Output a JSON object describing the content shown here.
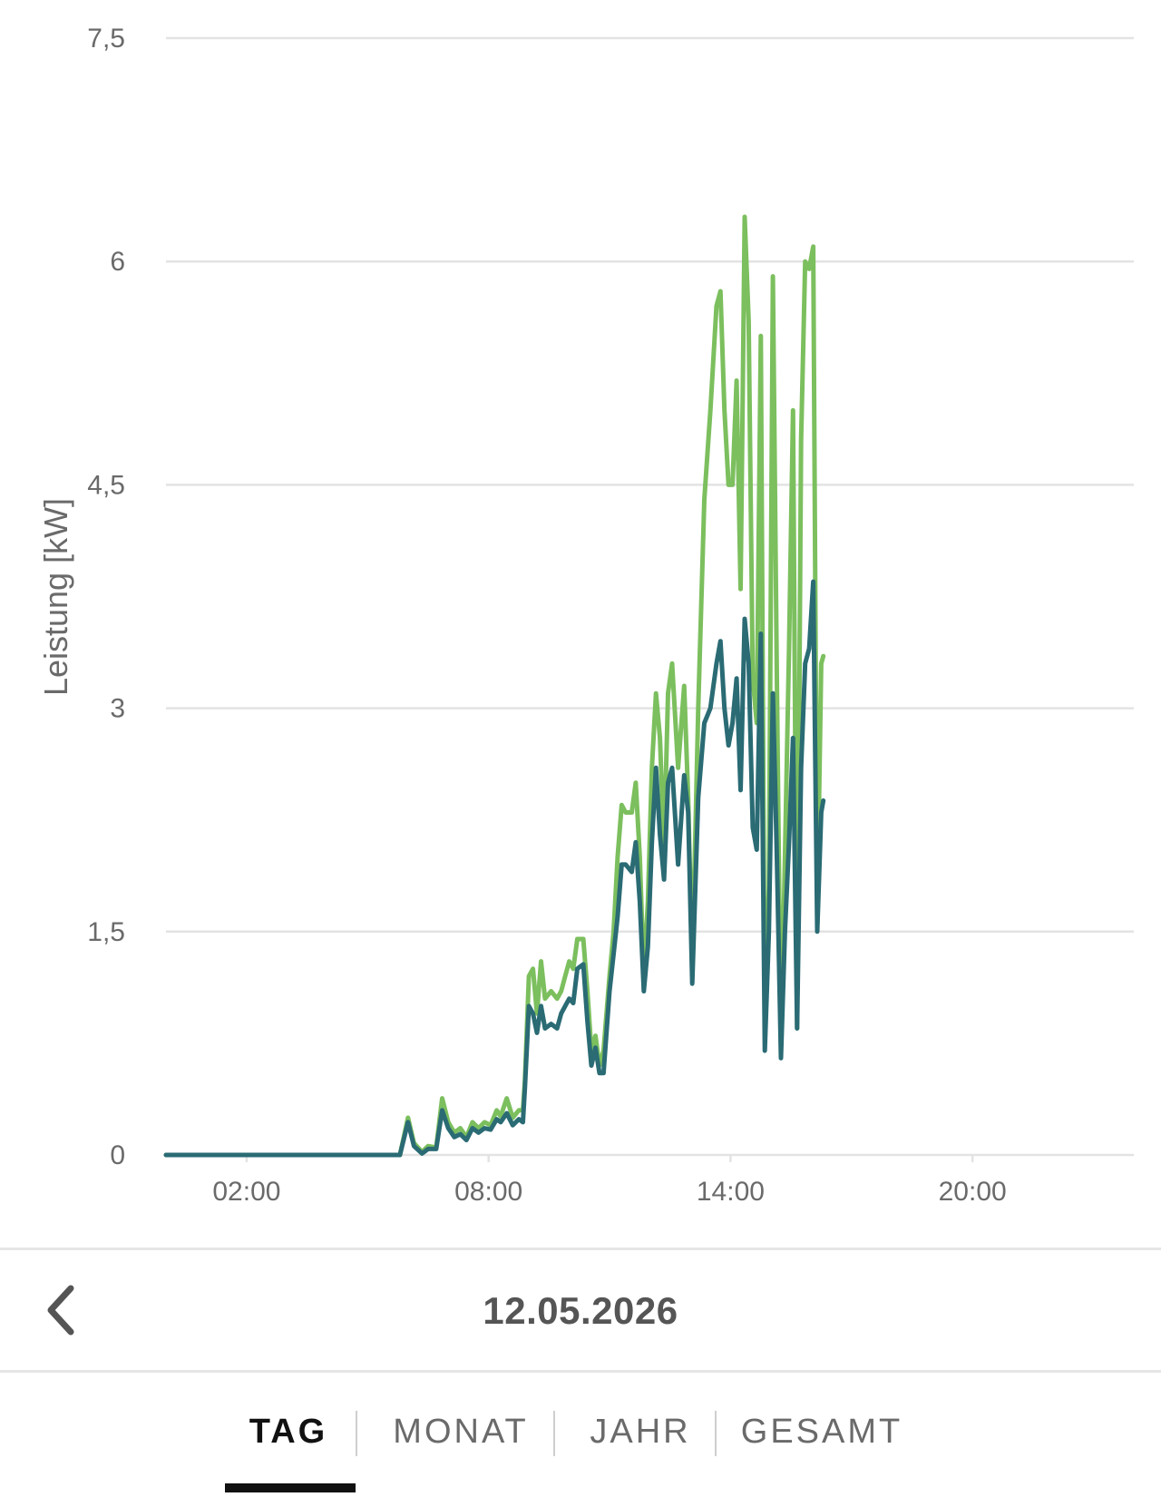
{
  "colors": {
    "series_green": "#7cbf5e",
    "series_teal": "#2a6b74",
    "grid": "#e3e3e3",
    "text": "#6a6a6a"
  },
  "chart_data": {
    "type": "line",
    "title": "",
    "xlabel": "",
    "ylabel": "Leistung [kW]",
    "xlim": [
      0,
      24
    ],
    "ylim": [
      0,
      7.5
    ],
    "y_ticks": [
      0,
      1.5,
      3,
      4.5,
      6,
      7.5
    ],
    "y_tick_labels": [
      "0",
      "1,5",
      "3",
      "4,5",
      "6",
      "7,5"
    ],
    "x_ticks": [
      2,
      8,
      14,
      20
    ],
    "x_tick_labels": [
      "02:00",
      "08:00",
      "14:00",
      "20:00"
    ],
    "grid": true,
    "legend": "none",
    "series": [
      {
        "color": "#7cbf5e",
        "points": [
          [
            0,
            0
          ],
          [
            5.8,
            0
          ],
          [
            6.0,
            0.25
          ],
          [
            6.15,
            0.08
          ],
          [
            6.35,
            0.02
          ],
          [
            6.5,
            0.06
          ],
          [
            6.7,
            0.05
          ],
          [
            6.85,
            0.38
          ],
          [
            7.0,
            0.22
          ],
          [
            7.15,
            0.15
          ],
          [
            7.3,
            0.18
          ],
          [
            7.45,
            0.12
          ],
          [
            7.6,
            0.22
          ],
          [
            7.75,
            0.18
          ],
          [
            7.9,
            0.22
          ],
          [
            8.05,
            0.2
          ],
          [
            8.2,
            0.3
          ],
          [
            8.3,
            0.26
          ],
          [
            8.45,
            0.38
          ],
          [
            8.6,
            0.25
          ],
          [
            8.75,
            0.3
          ],
          [
            8.85,
            0.3
          ],
          [
            8.9,
            0.5
          ],
          [
            9.0,
            1.2
          ],
          [
            9.1,
            1.25
          ],
          [
            9.2,
            0.95
          ],
          [
            9.3,
            1.3
          ],
          [
            9.4,
            1.05
          ],
          [
            9.55,
            1.1
          ],
          [
            9.7,
            1.05
          ],
          [
            9.8,
            1.1
          ],
          [
            9.9,
            1.2
          ],
          [
            10.0,
            1.3
          ],
          [
            10.1,
            1.25
          ],
          [
            10.2,
            1.45
          ],
          [
            10.35,
            1.45
          ],
          [
            10.45,
            1.1
          ],
          [
            10.55,
            0.7
          ],
          [
            10.65,
            0.8
          ],
          [
            10.75,
            0.6
          ],
          [
            10.85,
            0.7
          ],
          [
            11.0,
            1.2
          ],
          [
            11.1,
            1.5
          ],
          [
            11.2,
            2.0
          ],
          [
            11.3,
            2.35
          ],
          [
            11.4,
            2.3
          ],
          [
            11.55,
            2.3
          ],
          [
            11.65,
            2.5
          ],
          [
            11.75,
            2.0
          ],
          [
            11.85,
            1.2
          ],
          [
            11.95,
            1.7
          ],
          [
            12.05,
            2.6
          ],
          [
            12.15,
            3.1
          ],
          [
            12.25,
            2.8
          ],
          [
            12.35,
            2.05
          ],
          [
            12.45,
            3.1
          ],
          [
            12.55,
            3.3
          ],
          [
            12.7,
            2.6
          ],
          [
            12.85,
            3.15
          ],
          [
            12.95,
            2.4
          ],
          [
            13.05,
            1.25
          ],
          [
            13.2,
            3.0
          ],
          [
            13.35,
            4.4
          ],
          [
            13.5,
            5.0
          ],
          [
            13.65,
            5.7
          ],
          [
            13.75,
            5.8
          ],
          [
            13.85,
            5.0
          ],
          [
            13.95,
            4.5
          ],
          [
            14.05,
            4.5
          ],
          [
            14.15,
            5.2
          ],
          [
            14.25,
            3.8
          ],
          [
            14.35,
            6.3
          ],
          [
            14.45,
            5.6
          ],
          [
            14.55,
            3.2
          ],
          [
            14.65,
            2.9
          ],
          [
            14.75,
            5.5
          ],
          [
            14.85,
            0.8
          ],
          [
            14.95,
            1.8
          ],
          [
            15.05,
            5.9
          ],
          [
            15.15,
            3.2
          ],
          [
            15.25,
            0.7
          ],
          [
            15.35,
            2.0
          ],
          [
            15.45,
            3.4
          ],
          [
            15.55,
            5.0
          ],
          [
            15.65,
            0.85
          ],
          [
            15.75,
            4.8
          ],
          [
            15.85,
            6.0
          ],
          [
            15.95,
            5.95
          ],
          [
            16.05,
            6.1
          ],
          [
            16.15,
            1.6
          ],
          [
            16.25,
            3.3
          ],
          [
            16.3,
            3.35
          ]
        ]
      },
      {
        "color": "#2a6b74",
        "points": [
          [
            0,
            0
          ],
          [
            5.8,
            0
          ],
          [
            6.0,
            0.22
          ],
          [
            6.15,
            0.06
          ],
          [
            6.35,
            0.01
          ],
          [
            6.5,
            0.04
          ],
          [
            6.7,
            0.04
          ],
          [
            6.85,
            0.3
          ],
          [
            7.0,
            0.18
          ],
          [
            7.15,
            0.12
          ],
          [
            7.3,
            0.14
          ],
          [
            7.45,
            0.1
          ],
          [
            7.6,
            0.18
          ],
          [
            7.75,
            0.15
          ],
          [
            7.9,
            0.18
          ],
          [
            8.05,
            0.17
          ],
          [
            8.2,
            0.24
          ],
          [
            8.3,
            0.22
          ],
          [
            8.45,
            0.28
          ],
          [
            8.6,
            0.2
          ],
          [
            8.75,
            0.24
          ],
          [
            8.85,
            0.22
          ],
          [
            8.9,
            0.45
          ],
          [
            9.0,
            1.0
          ],
          [
            9.1,
            0.95
          ],
          [
            9.2,
            0.82
          ],
          [
            9.3,
            1.0
          ],
          [
            9.4,
            0.85
          ],
          [
            9.55,
            0.88
          ],
          [
            9.7,
            0.85
          ],
          [
            9.8,
            0.95
          ],
          [
            9.9,
            1.0
          ],
          [
            10.0,
            1.05
          ],
          [
            10.1,
            1.02
          ],
          [
            10.2,
            1.25
          ],
          [
            10.35,
            1.28
          ],
          [
            10.45,
            0.9
          ],
          [
            10.55,
            0.6
          ],
          [
            10.65,
            0.72
          ],
          [
            10.75,
            0.55
          ],
          [
            10.85,
            0.55
          ],
          [
            11.0,
            1.1
          ],
          [
            11.1,
            1.35
          ],
          [
            11.2,
            1.6
          ],
          [
            11.3,
            1.95
          ],
          [
            11.4,
            1.95
          ],
          [
            11.55,
            1.9
          ],
          [
            11.65,
            2.1
          ],
          [
            11.75,
            1.7
          ],
          [
            11.85,
            1.1
          ],
          [
            11.95,
            1.4
          ],
          [
            12.05,
            2.1
          ],
          [
            12.15,
            2.6
          ],
          [
            12.25,
            2.15
          ],
          [
            12.35,
            1.85
          ],
          [
            12.45,
            2.5
          ],
          [
            12.55,
            2.6
          ],
          [
            12.7,
            1.95
          ],
          [
            12.85,
            2.55
          ],
          [
            12.95,
            2.3
          ],
          [
            13.05,
            1.15
          ],
          [
            13.2,
            2.4
          ],
          [
            13.35,
            2.9
          ],
          [
            13.5,
            3.0
          ],
          [
            13.65,
            3.3
          ],
          [
            13.75,
            3.45
          ],
          [
            13.85,
            3.0
          ],
          [
            13.95,
            2.75
          ],
          [
            14.05,
            2.9
          ],
          [
            14.15,
            3.2
          ],
          [
            14.25,
            2.45
          ],
          [
            14.35,
            3.6
          ],
          [
            14.45,
            3.3
          ],
          [
            14.55,
            2.2
          ],
          [
            14.65,
            2.05
          ],
          [
            14.75,
            3.5
          ],
          [
            14.85,
            0.7
          ],
          [
            14.95,
            1.5
          ],
          [
            15.05,
            3.1
          ],
          [
            15.15,
            2.0
          ],
          [
            15.25,
            0.65
          ],
          [
            15.35,
            1.5
          ],
          [
            15.45,
            2.1
          ],
          [
            15.55,
            2.8
          ],
          [
            15.65,
            0.85
          ],
          [
            15.75,
            2.6
          ],
          [
            15.85,
            3.3
          ],
          [
            15.95,
            3.4
          ],
          [
            16.05,
            3.85
          ],
          [
            16.15,
            1.5
          ],
          [
            16.25,
            2.3
          ],
          [
            16.3,
            2.38
          ]
        ]
      }
    ]
  },
  "date_nav": {
    "date": "12.05.2026"
  },
  "tabs": [
    {
      "label": "TAG",
      "active": true
    },
    {
      "label": "MONAT",
      "active": false
    },
    {
      "label": "JAHR",
      "active": false
    },
    {
      "label": "GESAMT",
      "active": false
    }
  ]
}
